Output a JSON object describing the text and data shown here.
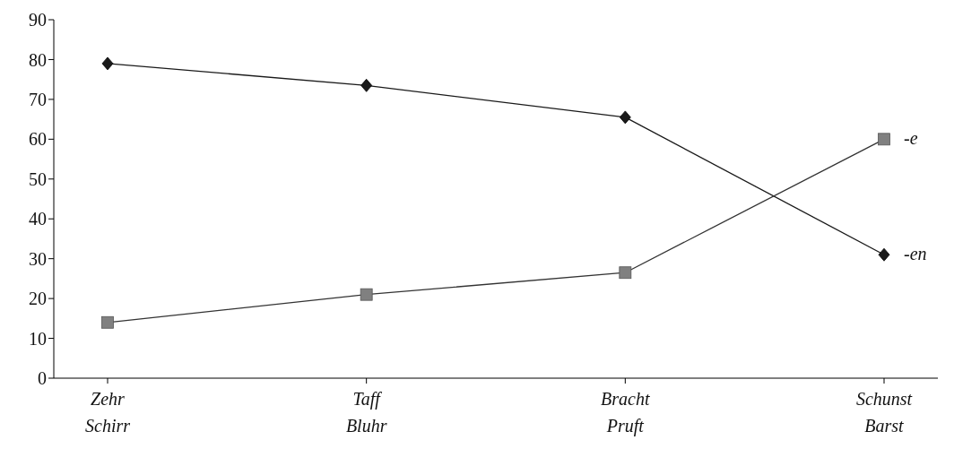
{
  "chart_data": {
    "type": "line",
    "categories": [
      "Zehr\nSchirr",
      "Taff\nBluhr",
      "Bracht\nPruft",
      "Schunst\nBarst"
    ],
    "series": [
      {
        "name": "-en",
        "color": "#1a1a1a",
        "marker": "diamond",
        "values": [
          79,
          73.5,
          65.5,
          31
        ]
      },
      {
        "name": "-e",
        "color": "#808080",
        "marker": "square",
        "values": [
          14,
          21,
          26.5,
          60
        ]
      }
    ],
    "ylim": [
      0,
      90
    ],
    "yticks": [
      0,
      10,
      20,
      30,
      40,
      50,
      60,
      70,
      80,
      90
    ],
    "grid": false,
    "legend": false
  }
}
